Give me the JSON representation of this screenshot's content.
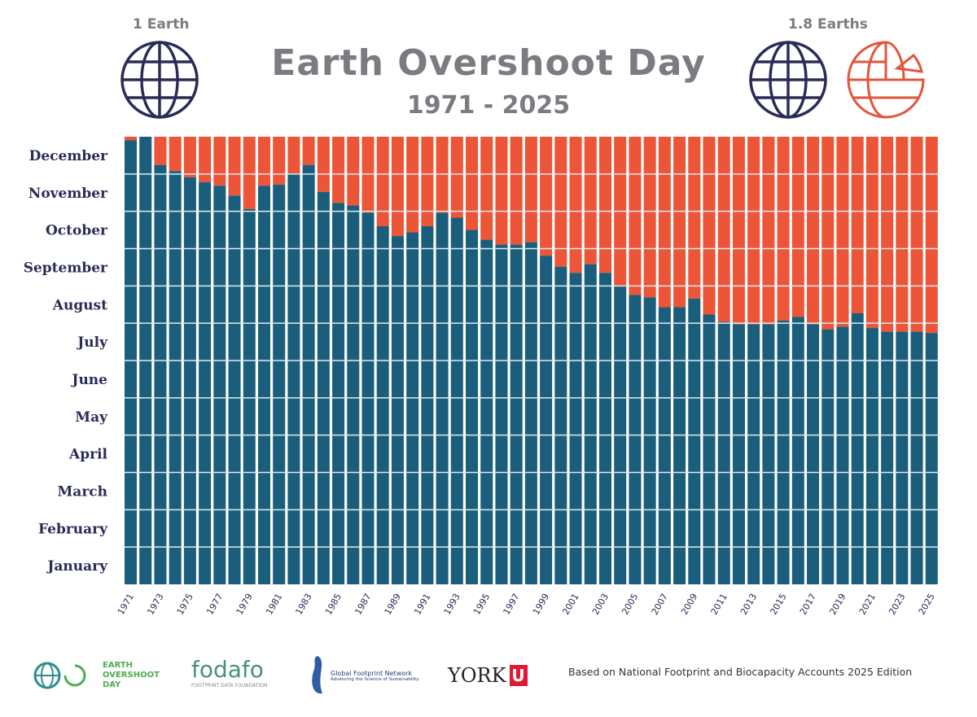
{
  "header": {
    "title": "Earth Overshoot Day",
    "subtitle": "1971 - 2025",
    "left_label": "1 Earth",
    "right_label": "1.8 Earths"
  },
  "colors": {
    "within_budget": "#1b5e7b",
    "overshoot": "#ec5538",
    "month_label": "#2a2c57",
    "title": "#7b7b82",
    "globe": "#2a2c57",
    "globe_partial": "#e2553a"
  },
  "footer": {
    "logos": [
      "EARTH OVERSHOOT DAY",
      "fodafo",
      "FOOTPRINT DATA FOUNDATION",
      "Global Footprint Network",
      "Advancing the Science of Sustainability",
      "YORK"
    ],
    "note": "Based on National Footprint and Biocapacity Accounts 2025 Edition"
  },
  "chart_data": {
    "type": "bar",
    "title": "Earth Overshoot Day 1971 - 2025",
    "xlabel": "",
    "ylabel": "",
    "y_tick_labels": [
      "January",
      "February",
      "March",
      "April",
      "May",
      "June",
      "July",
      "August",
      "September",
      "October",
      "November",
      "December"
    ],
    "x_tick_labels": [
      "1971",
      "1973",
      "1975",
      "1977",
      "1979",
      "1981",
      "1983",
      "1985",
      "1987",
      "1989",
      "1991",
      "1993",
      "1995",
      "1997",
      "1999",
      "2001",
      "2003",
      "2005",
      "2007",
      "2009",
      "2011",
      "2013",
      "2015",
      "2017",
      "2019",
      "2021",
      "2023",
      "2025"
    ],
    "ylim": [
      0,
      365
    ],
    "categories": [
      1971,
      1972,
      1973,
      1974,
      1975,
      1976,
      1977,
      1978,
      1979,
      1980,
      1981,
      1982,
      1983,
      1984,
      1985,
      1986,
      1987,
      1988,
      1989,
      1990,
      1991,
      1992,
      1993,
      1994,
      1995,
      1996,
      1997,
      1998,
      1999,
      2000,
      2001,
      2002,
      2003,
      2004,
      2005,
      2006,
      2007,
      2008,
      2009,
      2010,
      2011,
      2012,
      2013,
      2014,
      2015,
      2016,
      2017,
      2018,
      2019,
      2020,
      2021,
      2022,
      2023,
      2024,
      2025
    ],
    "series": [
      {
        "name": "Overshoot day (day of year)",
        "values": [
          362,
          365,
          342,
          337,
          332,
          328,
          325,
          317,
          306,
          325,
          326,
          335,
          342,
          320,
          311,
          309,
          303,
          292,
          284,
          287,
          292,
          303,
          299,
          289,
          281,
          277,
          277,
          279,
          268,
          259,
          254,
          261,
          254,
          243,
          236,
          234,
          226,
          226,
          233,
          220,
          214,
          212,
          212,
          212,
          215,
          218,
          212,
          208,
          210,
          221,
          209,
          206,
          206,
          206,
          205
        ]
      }
    ]
  }
}
